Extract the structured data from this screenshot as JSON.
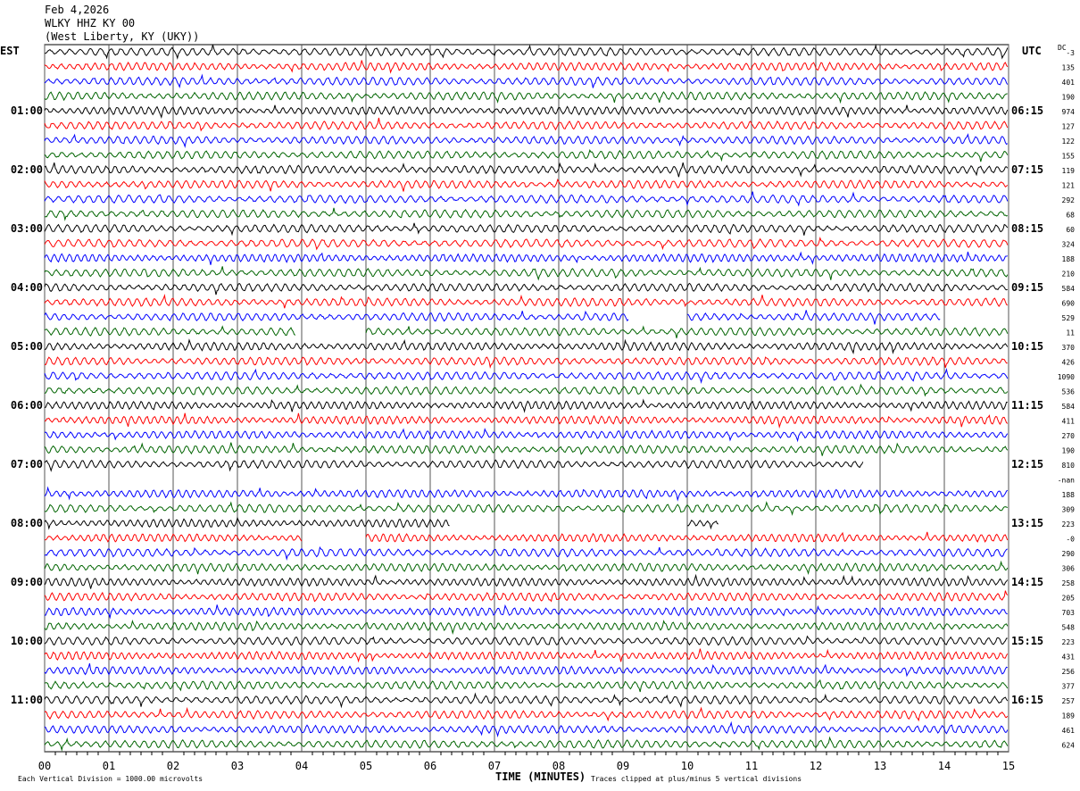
{
  "header": {
    "date": "Feb 4,2026",
    "station": "WLKY HHZ KY 00",
    "location": "(West Liberty, KY (UKY))"
  },
  "chart_data": {
    "type": "line",
    "title": "WLKY HHZ KY 00 helicorder",
    "xlabel": "TIME (MINUTES)",
    "xlim": [
      0,
      15
    ],
    "x_ticks": [
      "00",
      "01",
      "02",
      "03",
      "04",
      "05",
      "06",
      "07",
      "08",
      "09",
      "10",
      "11",
      "12",
      "13",
      "14",
      "15"
    ],
    "left_axis_label": "EST",
    "right_axis_label": "UTC",
    "left_ticks": [
      "01:00",
      "02:00",
      "03:00",
      "04:00",
      "05:00",
      "06:00",
      "07:00",
      "08:00",
      "09:00",
      "10:00",
      "11:00"
    ],
    "right_ticks": [
      "06:15",
      "07:15",
      "08:15",
      "09:15",
      "10:15",
      "11:15",
      "12:15",
      "13:15",
      "14:15",
      "15:15",
      "16:15"
    ],
    "dc_label": "DC",
    "trace_colors": [
      "#000000",
      "#ff0000",
      "#0000ff",
      "#006400"
    ],
    "dc_offsets": [
      "-3",
      "135",
      "401",
      "190",
      "974",
      "127",
      "122",
      "155",
      "119",
      "121",
      "292",
      "68",
      "60",
      "324",
      "188",
      "210",
      "584",
      "690",
      "529",
      "11",
      "370",
      "426",
      "1090",
      "536",
      "584",
      "411",
      "270",
      "190",
      "810",
      "-nan",
      "188",
      "309",
      "223",
      "-0",
      "290",
      "306",
      "258",
      "205",
      "703",
      "548",
      "223",
      "431",
      "256",
      "377",
      "257",
      "189",
      "461",
      "624"
    ],
    "trace_gaps": {
      "18": [
        [
          0,
          9.1
        ],
        [
          10,
          13.95
        ]
      ],
      "19": [
        [
          0,
          3.9
        ],
        [
          5,
          15
        ]
      ],
      "28": [
        [
          0,
          12.75
        ]
      ],
      "29": [],
      "32": [
        [
          0,
          6.3
        ],
        [
          10,
          10.5
        ]
      ],
      "33": [
        [
          0,
          4
        ],
        [
          5,
          15
        ]
      ]
    },
    "footer_left": "Each Vertical Division = 1000.00 microvolts",
    "footer_right": "Traces clipped at plus/minus 5 vertical divisions"
  }
}
